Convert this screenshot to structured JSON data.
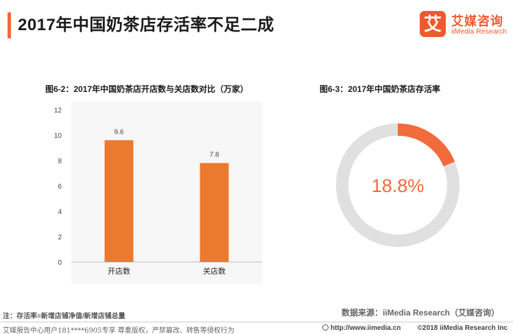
{
  "header": {
    "title": "2017年中国奶茶店存活率不足二成",
    "logo_mark": "艾",
    "logo_cn": "艾媒咨询",
    "logo_en": "iiMedia Research",
    "accent_color": "#f26b3a"
  },
  "chart_data": [
    {
      "type": "bar",
      "title": "图6-2：2017年中国奶茶店开店数与关店数对比（万家）",
      "categories": [
        "开店数",
        "关店数"
      ],
      "values": [
        9.6,
        7.8
      ],
      "data_labels": [
        "9.6",
        "7.8"
      ],
      "ylim": [
        0,
        12
      ],
      "yticks": [
        "0",
        "2",
        "4",
        "6",
        "8",
        "10",
        "12"
      ],
      "xlabel": "",
      "ylabel": "",
      "grid": false,
      "bar_color": "#ec7a2e",
      "plot_background": "#f7f7f7"
    },
    {
      "type": "pie",
      "variant": "donut",
      "title": "图6-3：2017年中国奶茶店存活率",
      "slices": [
        {
          "label": "存活率",
          "value": 18.8,
          "color": "#f26b3a"
        },
        {
          "label": "",
          "value": 81.2,
          "color": "#e0e0e0"
        }
      ],
      "center_label": "18.8%"
    }
  ],
  "footnote": "注：存活率=新增店铺净值/新增店铺总量",
  "source": "数据来源：iiMedia Research（艾媒咨询）",
  "footer": {
    "left": "艾媒报告中心用户181****6905专享 尊重版权，严禁篡改、转售等侵权行为",
    "url": "http://www.iimedia.cn",
    "copyright": "©2018  iiMedia Research  Inc"
  }
}
